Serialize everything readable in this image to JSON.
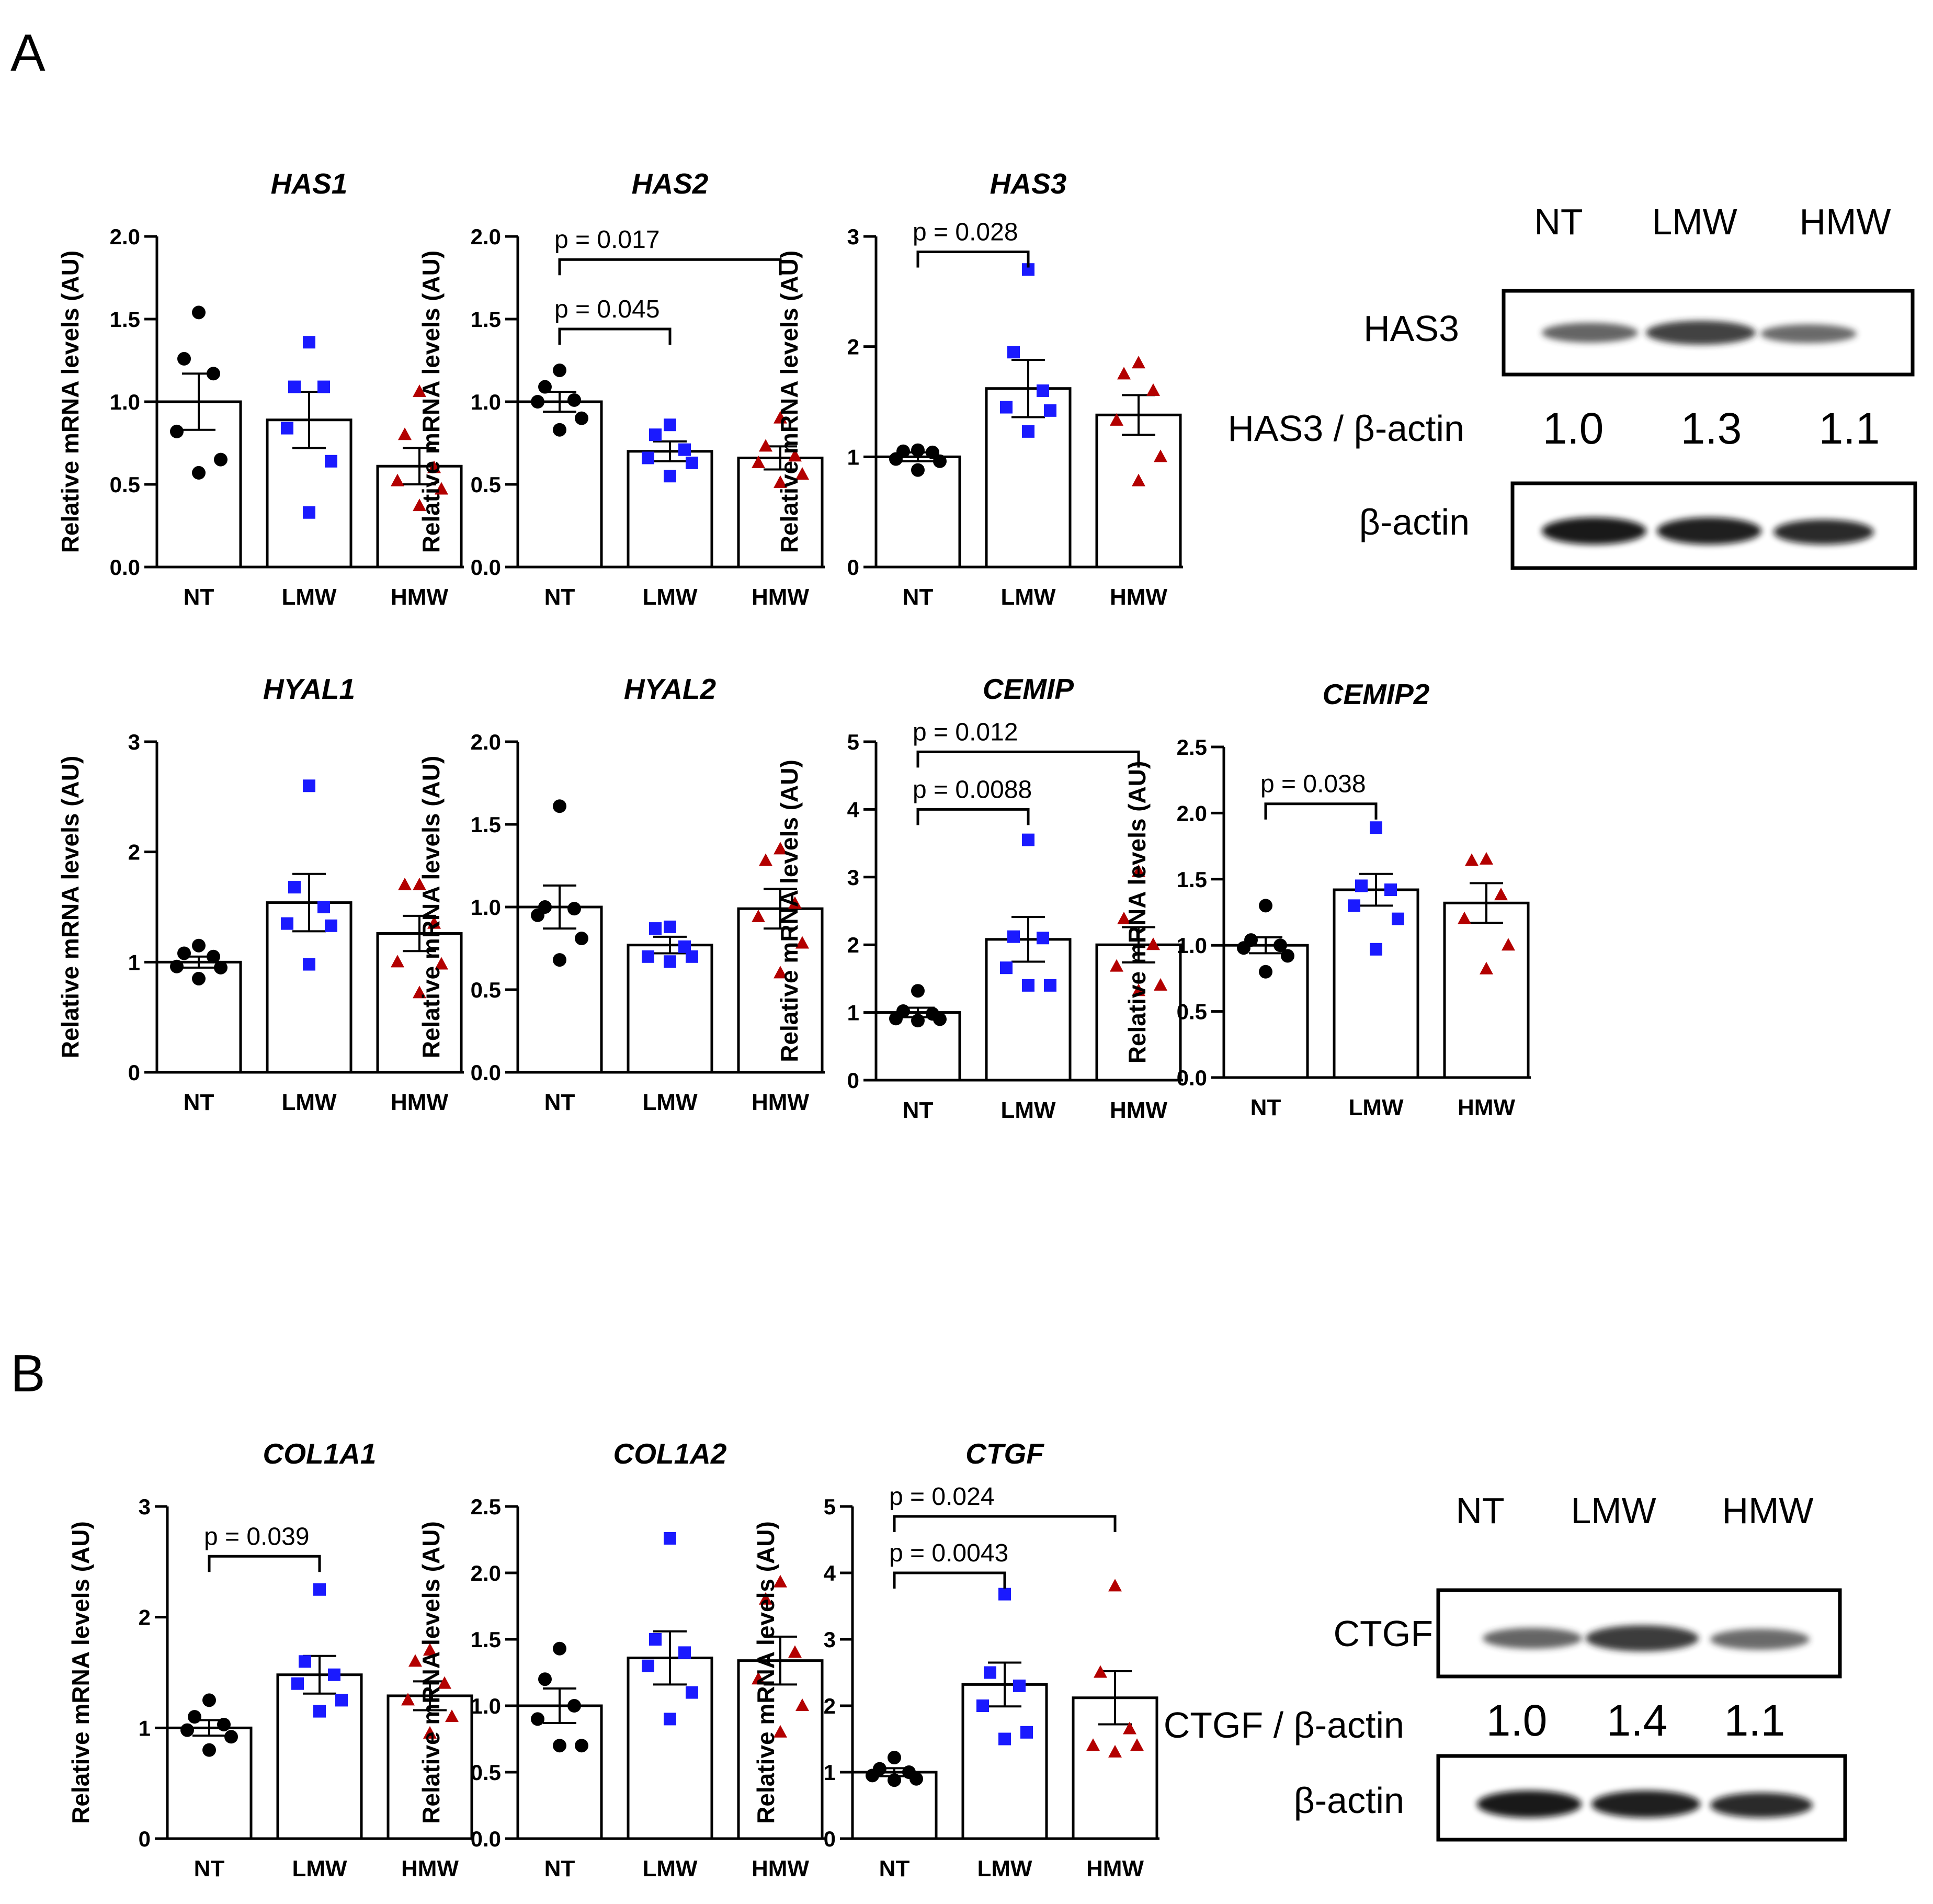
{
  "panels": {
    "a": "A",
    "b": "B"
  },
  "colors": {
    "NT": "#000000",
    "LMW": "#1a1aff",
    "HMW": "#b30000"
  },
  "chart_data": [
    {
      "id": "HAS1",
      "type": "bar",
      "title": "HAS1",
      "ylabel": "Relative mRNA levels (AU)",
      "categories": [
        "NT",
        "LMW",
        "HMW"
      ],
      "ylim": [
        0,
        2
      ],
      "yticks": [
        "0.0",
        "0.5",
        "1.0",
        "1.5",
        "2.0"
      ],
      "yticks_v": [
        0,
        0.5,
        1,
        1.5,
        2
      ],
      "means": [
        1.0,
        0.89,
        0.61
      ],
      "sem": [
        0.17,
        0.17,
        0.11
      ],
      "points": [
        [
          1.54,
          1.26,
          1.17,
          0.82,
          0.65,
          0.57
        ],
        [
          1.36,
          1.09,
          1.09,
          0.84,
          0.64,
          0.33
        ],
        [
          1.06,
          0.8,
          0.6,
          0.52,
          0.47,
          0.37
        ]
      ],
      "sig": []
    },
    {
      "id": "HAS2",
      "type": "bar",
      "title": "HAS2",
      "ylabel": "Relative mRNA levels (AU)",
      "categories": [
        "NT",
        "LMW",
        "HMW"
      ],
      "ylim": [
        0,
        2
      ],
      "yticks": [
        "0.0",
        "0.5",
        "1.0",
        "1.5",
        "2.0"
      ],
      "yticks_v": [
        0,
        0.5,
        1,
        1.5,
        2
      ],
      "means": [
        1.0,
        0.7,
        0.66
      ],
      "sem": [
        0.06,
        0.06,
        0.07
      ],
      "points": [
        [
          1.19,
          1.09,
          1.01,
          1.0,
          0.9,
          0.83
        ],
        [
          0.86,
          0.8,
          0.71,
          0.66,
          0.63,
          0.55
        ],
        [
          0.9,
          0.73,
          0.67,
          0.63,
          0.56,
          0.51
        ]
      ],
      "sig": [
        {
          "from": 0,
          "to": 1,
          "y": 1.44,
          "label": "p  = 0.045"
        },
        {
          "from": 0,
          "to": 2,
          "y": 1.86,
          "label": "p  = 0.017"
        }
      ]
    },
    {
      "id": "HAS3",
      "type": "bar",
      "title": "HAS3",
      "ylabel": "Relative mRNA levels (AU)",
      "categories": [
        "NT",
        "LMW",
        "HMW"
      ],
      "ylim": [
        0,
        3
      ],
      "yticks": [
        "0",
        "1",
        "2",
        "3"
      ],
      "yticks_v": [
        0,
        1,
        2,
        3
      ],
      "means": [
        1.0,
        1.62,
        1.38
      ],
      "sem": [
        0.04,
        0.26,
        0.18
      ],
      "points": [
        [
          1.06,
          1.05,
          1.04,
          0.98,
          0.96,
          0.88
        ],
        [
          2.7,
          1.95,
          1.6,
          1.45,
          1.42,
          1.23
        ],
        [
          1.85,
          1.75,
          1.6,
          1.33,
          1.0,
          0.78
        ]
      ],
      "sig": [
        {
          "from": 0,
          "to": 1,
          "y": 2.86,
          "label": "p  = 0.028"
        }
      ]
    },
    {
      "id": "HYAL1",
      "type": "bar",
      "title": "HYAL1",
      "ylabel": "Relative mRNA levels (AU)",
      "categories": [
        "NT",
        "LMW",
        "HMW"
      ],
      "ylim": [
        0,
        3
      ],
      "yticks": [
        "0",
        "1",
        "2",
        "3"
      ],
      "yticks_v": [
        0,
        1,
        2,
        3
      ],
      "means": [
        1.0,
        1.54,
        1.26
      ],
      "sem": [
        0.05,
        0.26,
        0.16
      ],
      "points": [
        [
          1.15,
          1.08,
          1.05,
          0.96,
          0.95,
          0.85
        ],
        [
          2.6,
          1.68,
          1.5,
          1.35,
          1.33,
          0.98
        ],
        [
          1.7,
          1.7,
          1.35,
          1.0,
          0.98,
          0.72
        ]
      ],
      "sig": []
    },
    {
      "id": "HYAL2",
      "type": "bar",
      "title": "HYAL2",
      "ylabel": "Relative mRNA levels (AU)",
      "categories": [
        "NT",
        "LMW",
        "HMW"
      ],
      "ylim": [
        0,
        2
      ],
      "yticks": [
        "0.0",
        "0.5",
        "1.0",
        "1.5",
        "2.0"
      ],
      "yticks_v": [
        0,
        0.5,
        1,
        1.5,
        2
      ],
      "means": [
        1.0,
        0.77,
        0.99
      ],
      "sem": [
        0.13,
        0.05,
        0.12
      ],
      "points": [
        [
          1.61,
          1.0,
          0.99,
          0.95,
          0.81,
          0.68
        ],
        [
          0.88,
          0.87,
          0.76,
          0.7,
          0.7,
          0.67
        ],
        [
          1.35,
          1.28,
          1.02,
          0.94,
          0.78,
          0.6
        ]
      ],
      "sig": []
    },
    {
      "id": "CEMIP",
      "type": "bar",
      "title": "CEMIP",
      "ylabel": "Relative mRNA levels (AU)",
      "categories": [
        "NT",
        "LMW",
        "HMW"
      ],
      "ylim": [
        0,
        5
      ],
      "yticks": [
        "0",
        "1",
        "2",
        "3",
        "4",
        "5"
      ],
      "yticks_v": [
        0,
        1,
        2,
        3,
        4,
        5
      ],
      "means": [
        1.0,
        2.08,
        2.0
      ],
      "sem": [
        0.07,
        0.33,
        0.26
      ],
      "points": [
        [
          1.32,
          1.02,
          0.98,
          0.91,
          0.9,
          0.88
        ],
        [
          3.55,
          2.12,
          2.1,
          1.66,
          1.4,
          1.4
        ],
        [
          3.08,
          2.38,
          2.0,
          1.68,
          1.4,
          1.32
        ]
      ],
      "sig": [
        {
          "from": 0,
          "to": 1,
          "y": 4.0,
          "label": "p = 0.0088"
        },
        {
          "from": 0,
          "to": 2,
          "y": 4.85,
          "label": "p = 0.012"
        }
      ]
    },
    {
      "id": "CEMIP2",
      "type": "bar",
      "title": "CEMIP2",
      "ylabel": "Relative mRNA levels (AU)",
      "categories": [
        "NT",
        "LMW",
        "HMW"
      ],
      "ylim": [
        0,
        2.5
      ],
      "yticks": [
        "0.0",
        "0.5",
        "1.0",
        "1.5",
        "2.0",
        "2.5"
      ],
      "yticks_v": [
        0,
        0.5,
        1,
        1.5,
        2,
        2.5
      ],
      "means": [
        1.0,
        1.42,
        1.32
      ],
      "sem": [
        0.06,
        0.12,
        0.15
      ],
      "points": [
        [
          1.3,
          1.04,
          1.0,
          0.98,
          0.92,
          0.8
        ],
        [
          1.89,
          1.45,
          1.42,
          1.3,
          1.2,
          0.97
        ],
        [
          1.65,
          1.64,
          1.38,
          1.2,
          1.0,
          0.82
        ]
      ],
      "sig": [
        {
          "from": 0,
          "to": 1,
          "y": 2.07,
          "label": "p = 0.038"
        }
      ]
    },
    {
      "id": "COL1A1",
      "type": "bar",
      "title": "COL1A1",
      "ylabel": "Relative mRNA levels (AU)",
      "categories": [
        "NT",
        "LMW",
        "HMW"
      ],
      "ylim": [
        0,
        3
      ],
      "yticks": [
        "0",
        "1",
        "2",
        "3"
      ],
      "yticks_v": [
        0,
        1,
        2,
        3
      ],
      "means": [
        1.0,
        1.48,
        1.29
      ],
      "sem": [
        0.07,
        0.17,
        0.13
      ],
      "points": [
        [
          1.25,
          1.1,
          1.03,
          0.98,
          0.92,
          0.8
        ],
        [
          2.25,
          1.6,
          1.48,
          1.4,
          1.25,
          1.15
        ],
        [
          1.7,
          1.6,
          1.4,
          1.25,
          1.1,
          0.95
        ]
      ],
      "sig": [
        {
          "from": 0,
          "to": 1,
          "y": 2.55,
          "label": "p = 0.039"
        }
      ]
    },
    {
      "id": "COL1A2",
      "type": "bar",
      "title": "COL1A2",
      "ylabel": "Relative mRNA levels (AU)",
      "categories": [
        "NT",
        "LMW",
        "HMW"
      ],
      "ylim": [
        0,
        2.5
      ],
      "yticks": [
        "0.0",
        "0.5",
        "1.0",
        "1.5",
        "2.0",
        "2.5"
      ],
      "yticks_v": [
        0,
        0.5,
        1,
        1.5,
        2,
        2.5
      ],
      "means": [
        1.0,
        1.36,
        1.34
      ],
      "sem": [
        0.13,
        0.2,
        0.18
      ],
      "points": [
        [
          1.43,
          1.2,
          1.0,
          0.9,
          0.7,
          0.7
        ],
        [
          2.26,
          1.5,
          1.4,
          1.3,
          1.1,
          0.9
        ],
        [
          1.93,
          1.8,
          1.4,
          1.2,
          1.0,
          0.8
        ]
      ],
      "sig": []
    },
    {
      "id": "CTGF",
      "type": "bar",
      "title": "CTGF",
      "ylabel": "Relative mRNA levels (AU)",
      "categories": [
        "NT",
        "LMW",
        "HMW"
      ],
      "ylim": [
        0,
        5
      ],
      "yticks": [
        "0",
        "1",
        "2",
        "3",
        "4",
        "5"
      ],
      "yticks_v": [
        0,
        1,
        2,
        3,
        4,
        5
      ],
      "means": [
        1.0,
        2.32,
        2.12
      ],
      "sem": [
        0.06,
        0.33,
        0.4
      ],
      "points": [
        [
          1.22,
          1.05,
          1.0,
          0.95,
          0.9,
          0.88
        ],
        [
          3.68,
          2.5,
          2.3,
          2.0,
          1.6,
          1.5
        ],
        [
          3.8,
          2.5,
          1.65,
          1.4,
          1.4,
          1.3
        ]
      ],
      "sig": [
        {
          "from": 0,
          "to": 1,
          "y": 4.0,
          "label": "p = 0.0043"
        },
        {
          "from": 0,
          "to": 2,
          "y": 4.85,
          "label": "p = 0.024"
        }
      ]
    }
  ],
  "blots": [
    {
      "id": "blotA",
      "lanes": [
        "NT",
        "LMW",
        "HMW"
      ],
      "target": "HAS3",
      "ratio_label": "HAS3 / β-actin",
      "ratios": [
        "1.0",
        "1.3",
        "1.1"
      ],
      "loading": "β-actin"
    },
    {
      "id": "blotB",
      "lanes": [
        "NT",
        "LMW",
        "HMW"
      ],
      "target": "CTGF",
      "ratio_label": "CTGF / β-actin",
      "ratios": [
        "1.0",
        "1.4",
        "1.1"
      ],
      "loading": "β-actin"
    }
  ]
}
